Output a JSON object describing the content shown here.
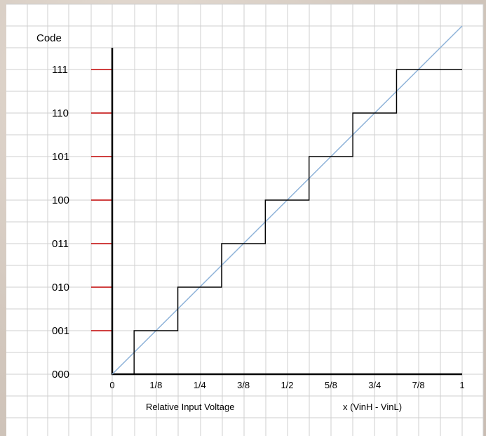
{
  "diagram": {
    "y_title": "Code",
    "codes": [
      "000",
      "001",
      "010",
      "011",
      "100",
      "101",
      "110",
      "111"
    ],
    "x_ticks": [
      "0",
      "1/8",
      "1/4",
      "3/8",
      "1/2",
      "5/8",
      "3/4",
      "7/8",
      "1"
    ],
    "x_title_left": "Relative Input Voltage",
    "x_title_right": "x (VinH - VinL)",
    "transitions": [
      0.0625,
      0.1875,
      0.3125,
      0.4375,
      0.5625,
      0.6875,
      0.8125
    ],
    "ideal_line": {
      "from": [
        0,
        0
      ],
      "to": [
        1,
        8
      ]
    },
    "colors": {
      "grid": "#cfcfcf",
      "axis": "#000000",
      "staircase": "#000000",
      "ideal_line": "#8fb3d9",
      "code_tick": "#c00000"
    }
  }
}
